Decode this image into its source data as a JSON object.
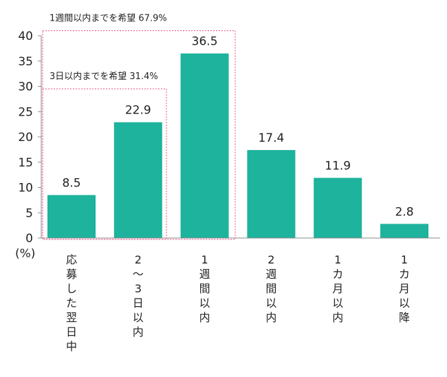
{
  "chart_data": {
    "type": "bar",
    "categories": [
      "応募した翌日中",
      "2~3日以内",
      "1週間以内",
      "2週間以内",
      "1カ月以内",
      "1カ月以降"
    ],
    "values": [
      8.5,
      22.9,
      36.5,
      17.4,
      11.9,
      2.8
    ],
    "value_labels": [
      "8.5",
      "22.9",
      "36.5",
      "17.4",
      "11.9",
      "2.8"
    ],
    "ylim": [
      0,
      40
    ],
    "yticks": [
      0,
      5,
      10,
      15,
      20,
      25,
      30,
      35,
      40
    ],
    "y_unit_label": "(%)",
    "grid": false,
    "bar_color": "#1db39c",
    "annotations": [
      {
        "text": "3日以内までを希望 31.4%",
        "covers_categories": [
          0,
          1
        ],
        "box_top_value": 29.5
      },
      {
        "text": "1週間以内までを希望 67.9%",
        "covers_categories": [
          0,
          1,
          2
        ],
        "box_top_value": 41.0
      }
    ],
    "annotation_color": "#e8457e"
  }
}
